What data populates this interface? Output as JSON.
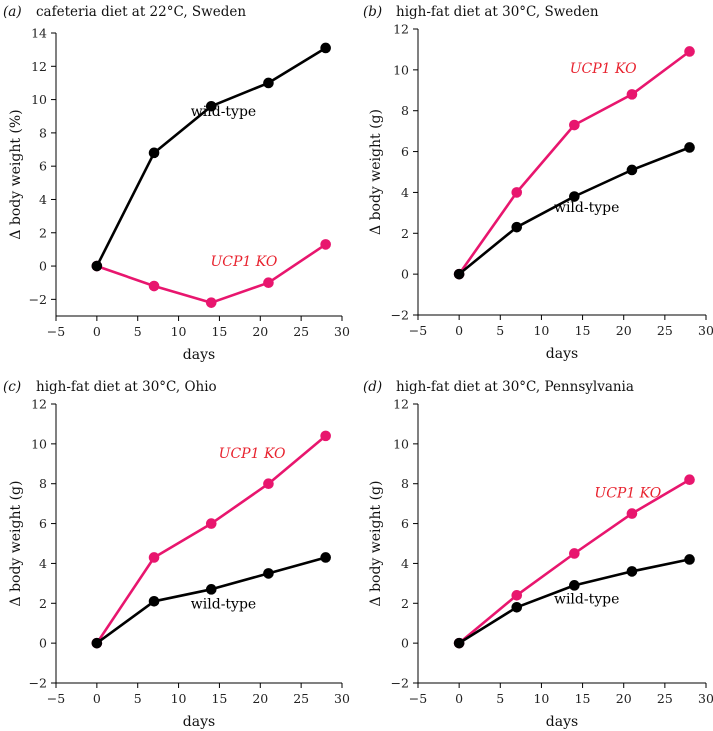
{
  "figure": {
    "background": "#ffffff"
  },
  "colors": {
    "wild_type": "#000000",
    "ucp1_ko": "#e8166e",
    "ucp1_label": "#e8232f",
    "axis": "#000000"
  },
  "chart_data": [
    {
      "type": "line",
      "panel_label": "(a)",
      "title": "cafeteria diet at 22°C, Sweden",
      "xlabel": "days",
      "ylabel": "Δ body weight (%)",
      "xlim": [
        -5,
        30
      ],
      "ylim": [
        -3,
        14
      ],
      "xticks": [
        -5,
        0,
        5,
        10,
        15,
        20,
        25,
        30
      ],
      "yticks": [
        -2,
        0,
        2,
        4,
        6,
        8,
        10,
        12,
        14
      ],
      "ytick_labels": [
        "−2",
        "0",
        "2",
        "4",
        "6",
        "8",
        "10",
        "12",
        "14"
      ],
      "xtick_labels": [
        "−5",
        "0",
        "5",
        "10",
        "15",
        "20",
        "25",
        "30"
      ],
      "x": [
        0,
        7,
        14,
        21,
        28
      ],
      "series": [
        {
          "name": "wild-type",
          "label": "wild-type",
          "label_italic": false,
          "values": [
            0,
            6.8,
            9.6,
            11.0,
            13.1
          ],
          "label_anchor": [
            15.5,
            9.0
          ]
        },
        {
          "name": "UCP1 KO",
          "label": "UCP1 KO",
          "label_italic": true,
          "values": [
            0,
            -1.2,
            -2.2,
            -1.0,
            1.3
          ],
          "label_anchor": [
            18,
            0.0
          ]
        }
      ]
    },
    {
      "type": "line",
      "panel_label": "(b)",
      "title": "high-fat diet at 30°C, Sweden",
      "xlabel": "days",
      "ylabel": "Δ body weight (g)",
      "xlim": [
        -5,
        30
      ],
      "ylim": [
        -2,
        12
      ],
      "xticks": [
        -5,
        0,
        5,
        10,
        15,
        20,
        25,
        30
      ],
      "yticks": [
        -2,
        0,
        2,
        4,
        6,
        8,
        10,
        12
      ],
      "ytick_labels": [
        "−2",
        "0",
        "2",
        "4",
        "6",
        "8",
        "10",
        "12"
      ],
      "xtick_labels": [
        "−5",
        "0",
        "5",
        "10",
        "15",
        "20",
        "25",
        "30"
      ],
      "x": [
        0,
        7,
        14,
        21,
        28
      ],
      "series": [
        {
          "name": "wild-type",
          "label": "wild-type",
          "label_italic": false,
          "values": [
            0,
            2.3,
            3.8,
            5.1,
            6.2
          ],
          "label_anchor": [
            15.5,
            3.05
          ]
        },
        {
          "name": "UCP1 KO",
          "label": "UCP1 KO",
          "label_italic": true,
          "values": [
            0,
            4.0,
            7.3,
            8.8,
            10.9
          ],
          "label_anchor": [
            17.5,
            9.85
          ]
        }
      ]
    },
    {
      "type": "line",
      "panel_label": "(c)",
      "title": "high-fat diet at 30°C, Ohio",
      "xlabel": "days",
      "ylabel": "Δ body weight (g)",
      "xlim": [
        -5,
        30
      ],
      "ylim": [
        -2,
        12
      ],
      "xticks": [
        -5,
        0,
        5,
        10,
        15,
        20,
        25,
        30
      ],
      "yticks": [
        -2,
        0,
        2,
        4,
        6,
        8,
        10,
        12
      ],
      "ytick_labels": [
        "−2",
        "0",
        "2",
        "4",
        "6",
        "8",
        "10",
        "12"
      ],
      "xtick_labels": [
        "−5",
        "0",
        "5",
        "10",
        "15",
        "20",
        "25",
        "30"
      ],
      "x": [
        0,
        7,
        14,
        21,
        28
      ],
      "series": [
        {
          "name": "wild-type",
          "label": "wild-type",
          "label_italic": false,
          "values": [
            0,
            2.1,
            2.7,
            3.5,
            4.3
          ],
          "label_anchor": [
            15.5,
            1.75
          ]
        },
        {
          "name": "UCP1 KO",
          "label": "UCP1 KO",
          "label_italic": true,
          "values": [
            0,
            4.3,
            6.0,
            8.0,
            10.4
          ],
          "label_anchor": [
            19,
            9.3
          ]
        }
      ]
    },
    {
      "type": "line",
      "panel_label": "(d)",
      "title": "high-fat diet at 30°C, Pennsylvania",
      "xlabel": "days",
      "ylabel": "Δ body weight (g)",
      "xlim": [
        -5,
        30
      ],
      "ylim": [
        -2,
        12
      ],
      "xticks": [
        -5,
        0,
        5,
        10,
        15,
        20,
        25,
        30
      ],
      "yticks": [
        -2,
        0,
        2,
        4,
        6,
        8,
        10,
        12
      ],
      "ytick_labels": [
        "−2",
        "0",
        "2",
        "4",
        "6",
        "8",
        "10",
        "12"
      ],
      "xtick_labels": [
        "−5",
        "0",
        "5",
        "10",
        "15",
        "20",
        "25",
        "30"
      ],
      "x": [
        0,
        7,
        14,
        21,
        28
      ],
      "series": [
        {
          "name": "wild-type",
          "label": "wild-type",
          "label_italic": false,
          "values": [
            0,
            1.8,
            2.9,
            3.6,
            4.2
          ],
          "label_anchor": [
            15.5,
            2.0
          ]
        },
        {
          "name": "UCP1 KO",
          "label": "UCP1 KO",
          "label_italic": true,
          "values": [
            0,
            2.4,
            4.5,
            6.5,
            8.2
          ],
          "label_anchor": [
            20.5,
            7.3
          ]
        }
      ]
    }
  ]
}
